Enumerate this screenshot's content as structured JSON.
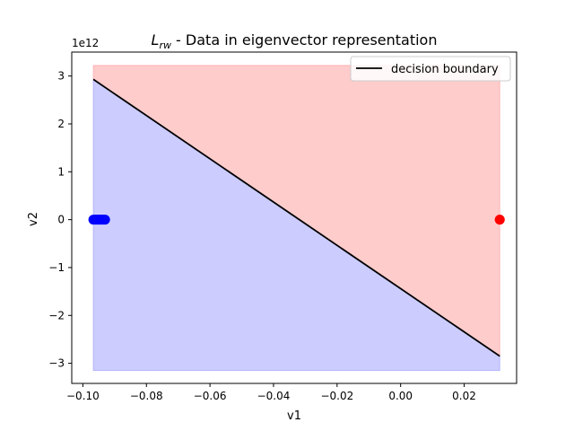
{
  "chart_data": {
    "type": "scatter",
    "title_main": "L",
    "title_sub": "rw",
    "title_rest": " - Data in eigenvector representation",
    "xlabel": "v1",
    "ylabel": "v2",
    "y_offset_label": "1e12",
    "xlim": [
      -0.1035,
      0.0365
    ],
    "ylim": [
      -3.42,
      3.5
    ],
    "x_ticks": [
      -0.1,
      -0.08,
      -0.06,
      -0.04,
      -0.02,
      0.0,
      0.02
    ],
    "x_tick_labels": [
      "−0.10",
      "−0.08",
      "−0.06",
      "−0.04",
      "−0.02",
      "0.00",
      "0.02"
    ],
    "y_ticks": [
      -3,
      -2,
      -1,
      0,
      1,
      2,
      3
    ],
    "y_tick_labels": [
      "−3",
      "−2",
      "−1",
      "0",
      "1",
      "2",
      "3"
    ],
    "regions": {
      "x_range": [
        -0.0967,
        0.0312
      ],
      "y_range": [
        -3.15,
        3.22
      ],
      "above_color": "#ff9999",
      "below_color": "#9999ff"
    },
    "decision_boundary": {
      "name": "decision boundary",
      "color": "#000000",
      "points": [
        [
          -0.0967,
          2.93
        ],
        [
          0.0312,
          -2.85
        ]
      ]
    },
    "series": [
      {
        "color": "#0000ff",
        "x": [
          -0.0967,
          -0.0962,
          -0.0958,
          -0.0954,
          -0.095,
          -0.0946,
          -0.0942,
          -0.0938,
          -0.0934,
          -0.093
        ],
        "y": [
          0,
          0,
          0,
          0,
          0,
          0,
          0,
          0,
          0,
          0
        ]
      },
      {
        "color": "#ff0000",
        "x": [
          0.0312,
          0.0312
        ],
        "y": [
          0,
          0
        ]
      }
    ],
    "legend_position": "top-right",
    "grid": false
  }
}
